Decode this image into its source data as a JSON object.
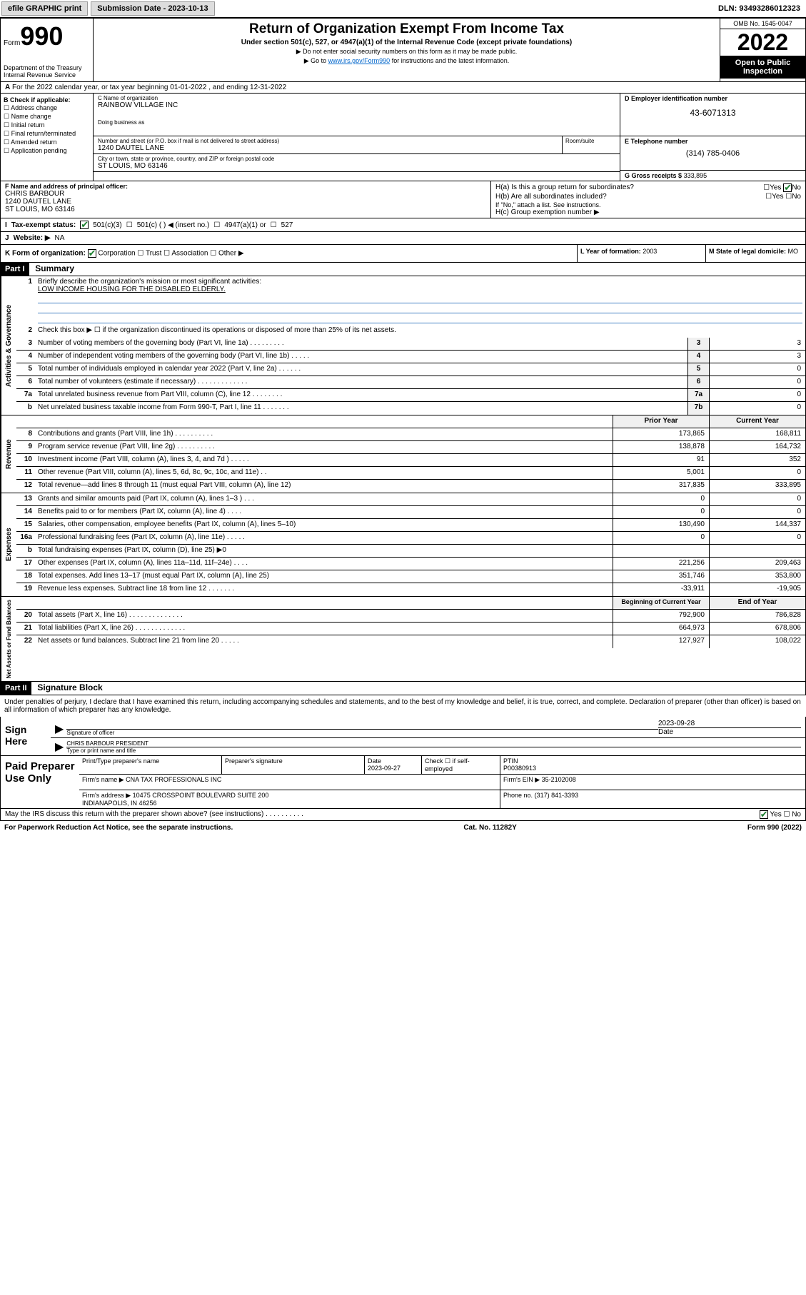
{
  "topbar": {
    "efile": "efile GRAPHIC print",
    "subdate_lbl": "Submission Date - 2023-10-13",
    "dln_lbl": "DLN: 93493286012323"
  },
  "header": {
    "form_word": "Form",
    "form_num": "990",
    "dept": "Department of the Treasury\nInternal Revenue Service",
    "title": "Return of Organization Exempt From Income Tax",
    "subtitle": "Under section 501(c), 527, or 4947(a)(1) of the Internal Revenue Code (except private foundations)",
    "instr1": "▶ Do not enter social security numbers on this form as it may be made public.",
    "instr2_pre": "▶ Go to ",
    "instr2_link": "www.irs.gov/Form990",
    "instr2_post": " for instructions and the latest information.",
    "omb": "OMB No. 1545-0047",
    "year": "2022",
    "open_public": "Open to Public Inspection"
  },
  "row_a": "For the 2022 calendar year, or tax year beginning 01-01-2022   , and ending 12-31-2022",
  "col_b": {
    "hdr": "B Check if applicable:",
    "items": [
      "Address change",
      "Name change",
      "Initial return",
      "Final return/terminated",
      "Amended return",
      "Application pending"
    ]
  },
  "name": {
    "lbl": "C Name of organization",
    "val": "RAINBOW VILLAGE INC",
    "dba_lbl": "Doing business as"
  },
  "addr": {
    "lbl": "Number and street (or P.O. box if mail is not delivered to street address)",
    "val": "1240 DAUTEL LANE",
    "room_lbl": "Room/suite",
    "city_lbl": "City or town, state or province, country, and ZIP or foreign postal code",
    "city_val": "ST LOUIS, MO  63146"
  },
  "ein": {
    "lbl": "D Employer identification number",
    "val": "43-6071313"
  },
  "tel": {
    "lbl": "E Telephone number",
    "val": "(314) 785-0406"
  },
  "gross": {
    "lbl": "G Gross receipts $",
    "val": "333,895"
  },
  "officer": {
    "lbl": "F  Name and address of principal officer:",
    "name": "CHRIS BARBOUR",
    "addr1": "1240 DAUTEL LANE",
    "addr2": "ST LOUIS, MO  63146"
  },
  "h": {
    "ha": "H(a)  Is this a group return for subordinates?",
    "hb": "H(b)  Are all subordinates included?",
    "hb_note": "If \"No,\" attach a list. See instructions.",
    "hc": "H(c)  Group exemption number ▶",
    "yes": "Yes",
    "no": "No"
  },
  "row_i": {
    "lbl": "Tax-exempt status:",
    "opts": [
      "501(c)(3)",
      "501(c) (   ) ◀ (insert no.)",
      "4947(a)(1) or",
      "527"
    ]
  },
  "row_j": {
    "lbl": "Website: ▶",
    "val": "NA"
  },
  "row_k": {
    "lbl": "K Form of organization:",
    "opts": [
      "Corporation",
      "Trust",
      "Association",
      "Other ▶"
    ],
    "year_lbl": "L Year of formation:",
    "year_val": "2003",
    "state_lbl": "M State of legal domicile:",
    "state_val": "MO"
  },
  "part1": {
    "hdr": "Part I",
    "title": "Summary",
    "q1": "Briefly describe the organization's mission or most significant activities:",
    "q1_ans": "LOW INCOME HOUSING FOR THE DISABLED ELDERLY.",
    "q2": "Check this box ▶ ☐  if the organization discontinued its operations or disposed of more than 25% of its net assets.",
    "lines_gov": [
      {
        "n": "3",
        "d": "Number of voting members of the governing body (Part VI, line 1a)   .    .    .    .    .    .    .    .    .",
        "b": "3",
        "v": "3"
      },
      {
        "n": "4",
        "d": "Number of independent voting members of the governing body (Part VI, line 1b)   .    .    .    .    .",
        "b": "4",
        "v": "3"
      },
      {
        "n": "5",
        "d": "Total number of individuals employed in calendar year 2022 (Part V, line 2a)   .    .    .    .    .    .",
        "b": "5",
        "v": "0"
      },
      {
        "n": "6",
        "d": "Total number of volunteers (estimate if necessary)   .    .    .    .    .    .    .    .    .    .    .    .    .",
        "b": "6",
        "v": "0"
      },
      {
        "n": "7a",
        "d": "Total unrelated business revenue from Part VIII, column (C), line 12   .    .    .    .    .    .    .    .",
        "b": "7a",
        "v": "0"
      },
      {
        "n": "b",
        "d": "Net unrelated business taxable income from Form 990-T, Part I, line 11   .    .    .    .    .    .    .",
        "b": "7b",
        "v": "0"
      }
    ],
    "prior": "Prior Year",
    "current": "Current Year",
    "lines_rev": [
      {
        "n": "8",
        "d": "Contributions and grants (Part VIII, line 1h)   .    .    .    .    .    .    .    .    .    .",
        "p": "173,865",
        "c": "168,811"
      },
      {
        "n": "9",
        "d": "Program service revenue (Part VIII, line 2g)   .    .    .    .    .    .    .    .    .    .",
        "p": "138,878",
        "c": "164,732"
      },
      {
        "n": "10",
        "d": "Investment income (Part VIII, column (A), lines 3, 4, and 7d )   .    .    .    .    .",
        "p": "91",
        "c": "352"
      },
      {
        "n": "11",
        "d": "Other revenue (Part VIII, column (A), lines 5, 6d, 8c, 9c, 10c, and 11e)   .    .",
        "p": "5,001",
        "c": "0"
      },
      {
        "n": "12",
        "d": "Total revenue—add lines 8 through 11 (must equal Part VIII, column (A), line 12)",
        "p": "317,835",
        "c": "333,895"
      }
    ],
    "lines_exp": [
      {
        "n": "13",
        "d": "Grants and similar amounts paid (Part IX, column (A), lines 1–3 )   .    .    .",
        "p": "0",
        "c": "0"
      },
      {
        "n": "14",
        "d": "Benefits paid to or for members (Part IX, column (A), line 4)   .    .    .    .",
        "p": "0",
        "c": "0"
      },
      {
        "n": "15",
        "d": "Salaries, other compensation, employee benefits (Part IX, column (A), lines 5–10)",
        "p": "130,490",
        "c": "144,337"
      },
      {
        "n": "16a",
        "d": "Professional fundraising fees (Part IX, column (A), line 11e)   .    .    .    .    .",
        "p": "0",
        "c": "0"
      },
      {
        "n": "b",
        "d": "Total fundraising expenses (Part IX, column (D), line 25) ▶0",
        "p": "",
        "c": ""
      },
      {
        "n": "17",
        "d": "Other expenses (Part IX, column (A), lines 11a–11d, 11f–24e)   .    .    .    .",
        "p": "221,256",
        "c": "209,463"
      },
      {
        "n": "18",
        "d": "Total expenses. Add lines 13–17 (must equal Part IX, column (A), line 25)",
        "p": "351,746",
        "c": "353,800"
      },
      {
        "n": "19",
        "d": "Revenue less expenses. Subtract line 18 from line 12   .    .    .    .    .    .    .",
        "p": "-33,911",
        "c": "-19,905"
      }
    ],
    "beg": "Beginning of Current Year",
    "end": "End of Year",
    "lines_net": [
      {
        "n": "20",
        "d": "Total assets (Part X, line 16)   .    .    .    .    .    .    .    .    .    .    .    .    .    .",
        "p": "792,900",
        "c": "786,828"
      },
      {
        "n": "21",
        "d": "Total liabilities (Part X, line 26)   .    .    .    .    .    .    .    .    .    .    .    .    .",
        "p": "664,973",
        "c": "678,806"
      },
      {
        "n": "22",
        "d": "Net assets or fund balances. Subtract line 21 from line 20   .    .    .    .    .",
        "p": "127,927",
        "c": "108,022"
      }
    ]
  },
  "part2": {
    "hdr": "Part II",
    "title": "Signature Block"
  },
  "sig_text": "Under penalties of perjury, I declare that I have examined this return, including accompanying schedules and statements, and to the best of my knowledge and belief, it is true, correct, and complete. Declaration of preparer (other than officer) is based on all information of which preparer has any knowledge.",
  "sign": {
    "here": "Sign Here",
    "sig_lbl": "Signature of officer",
    "date": "2023-09-28",
    "date_lbl": "Date",
    "name": "CHRIS BARBOUR  PRESIDENT",
    "name_lbl": "Type or print name and title"
  },
  "paid": {
    "title": "Paid Preparer Use Only",
    "hdr": [
      "Print/Type preparer's name",
      "Preparer's signature",
      "Date",
      "Check ☐ if self-employed",
      "PTIN"
    ],
    "date": "2023-09-27",
    "ptin": "P00380913",
    "firm_lbl": "Firm's name   ▶",
    "firm": "CNA TAX PROFESSIONALS INC",
    "ein_lbl": "Firm's EIN ▶",
    "ein": "35-2102008",
    "addr_lbl": "Firm's address ▶",
    "addr": "10475 CROSSPOINT BOULEVARD SUITE 200\nINDIANAPOLIS, IN  46256",
    "phone_lbl": "Phone no.",
    "phone": "(317) 841-3393"
  },
  "may_irs": "May the IRS discuss this return with the preparer shown above? (see instructions)   .    .    .    .    .    .    .    .    .    .",
  "footer": {
    "left": "For Paperwork Reduction Act Notice, see the separate instructions.",
    "mid": "Cat. No. 11282Y",
    "right": "Form 990 (2022)"
  },
  "side_labels": [
    "Activities & Governance",
    "Revenue",
    "Expenses",
    "Net Assets or Fund Balances"
  ]
}
